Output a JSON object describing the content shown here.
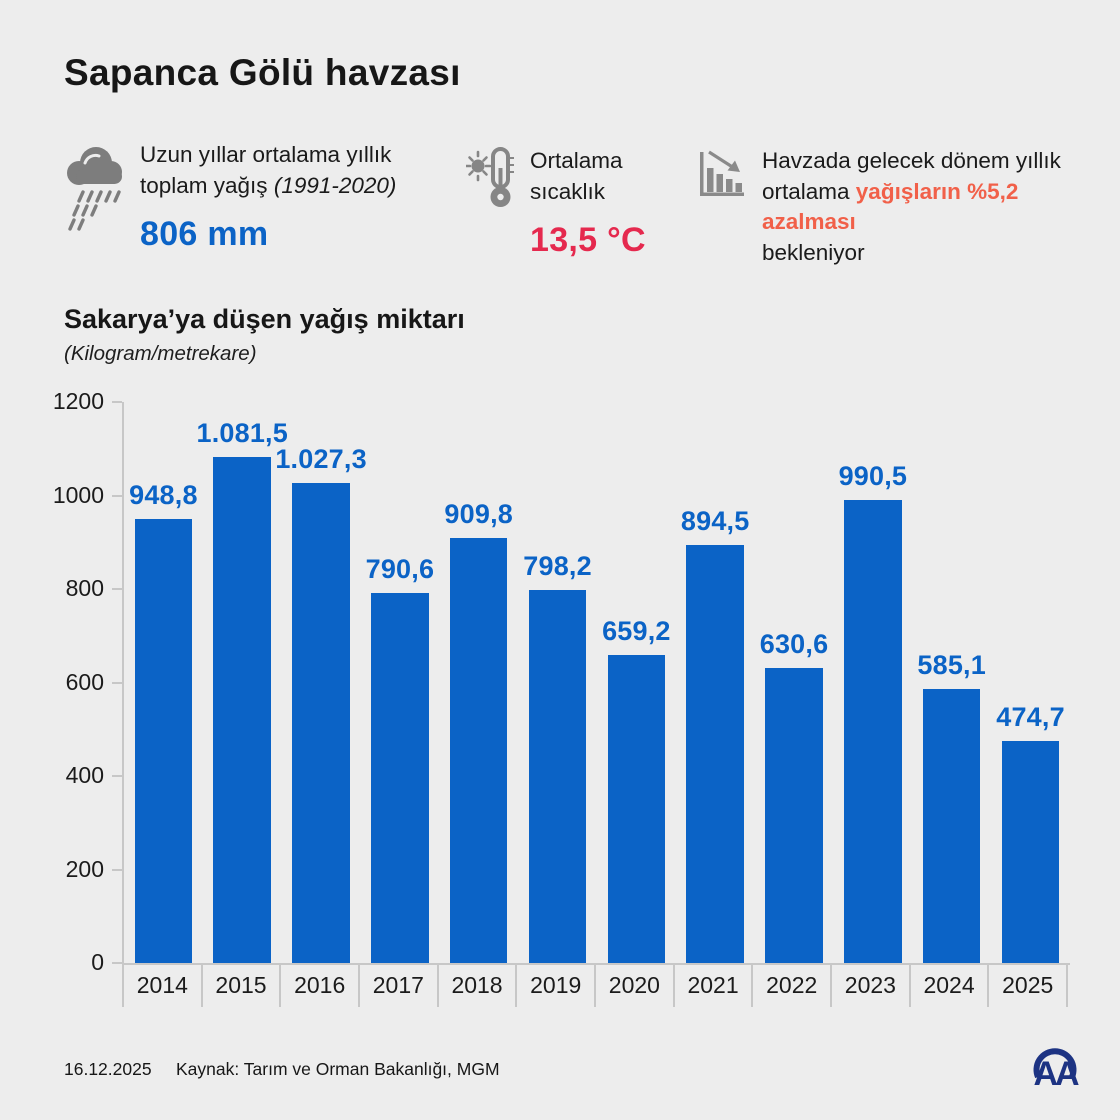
{
  "header": {
    "title": "Sapanca Gölü havzası"
  },
  "stats": {
    "precipitation": {
      "icon": "rain-cloud-icon",
      "label": "Uzun yıllar ortalama yıllık toplam yağış",
      "label_note": "(1991-2020)",
      "value": "806 mm",
      "value_color": "#0b63c6"
    },
    "temperature": {
      "icon": "thermometer-icon",
      "label": "Ortalama sıcaklık",
      "value": "13,5 °C",
      "value_color": "#e5294e"
    },
    "forecast": {
      "icon": "declining-chart-icon",
      "text_start": "Havzada gelecek dönem yıllık ortalama ",
      "text_highlight": "yağışların %5,2 azalması",
      "text_end": "bekleniyor",
      "highlight_color": "#f16049"
    }
  },
  "chart": {
    "title": "Sakarya’ya düşen yağış miktarı",
    "subtitle": "(Kilogram/metrekare)"
  },
  "chart_data": {
    "type": "bar",
    "title": "Sakarya’ya düşen yağış miktarı",
    "xlabel": "",
    "ylabel": "Kilogram/metrekare",
    "categories": [
      "2014",
      "2015",
      "2016",
      "2017",
      "2018",
      "2019",
      "2020",
      "2021",
      "2022",
      "2023",
      "2024",
      "2025"
    ],
    "values": [
      948.8,
      1081.5,
      1027.3,
      790.6,
      909.8,
      798.2,
      659.2,
      894.5,
      630.6,
      990.5,
      585.1,
      474.7
    ],
    "value_labels": [
      "948,8",
      "1.081,5",
      "1.027,3",
      "790,6",
      "909,8",
      "798,2",
      "659,2",
      "894,5",
      "630,6",
      "990,5",
      "585,1",
      "474,7"
    ],
    "ylim": [
      0,
      1200
    ],
    "y_ticks": [
      0,
      200,
      400,
      600,
      800,
      1000,
      1200
    ],
    "bar_color": "#0b63c6",
    "grid": false,
    "legend": false
  },
  "footer": {
    "date": "16.12.2025",
    "source": "Kaynak: Tarım ve Orman Bakanlığı, MGM",
    "logo": "AA"
  }
}
